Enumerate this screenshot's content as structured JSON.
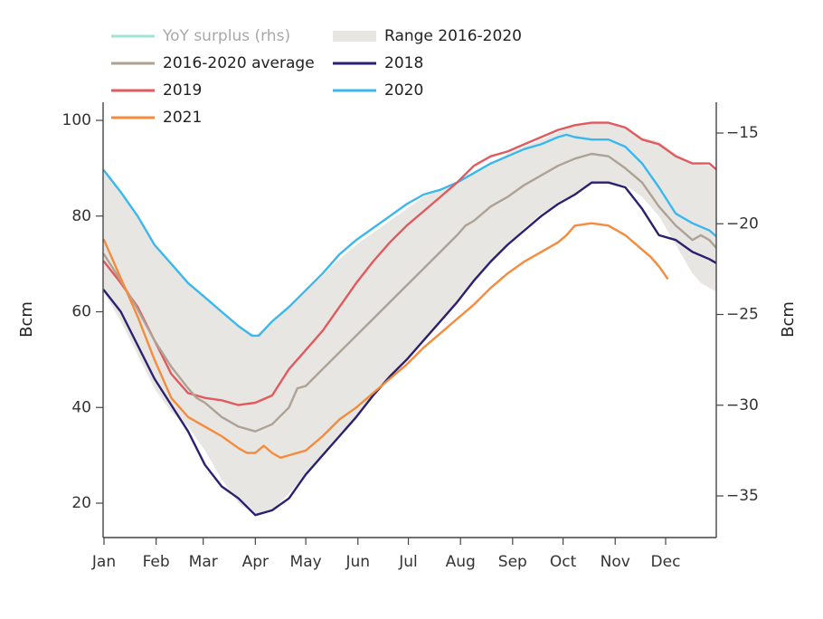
{
  "chart_data": {
    "type": "line",
    "title": "",
    "xlabel": "",
    "ylabel": "Bcm",
    "ylabel_right": "Bcm",
    "x_unit": "day_of_year",
    "xlim": [
      0,
      365
    ],
    "ylim": [
      13,
      104
    ],
    "ylim_right": [
      -37.2,
      -13.6
    ],
    "y_ticks": [
      20,
      40,
      60,
      80,
      100
    ],
    "y_ticks_right": [
      -35,
      -30,
      -25,
      -20,
      -15
    ],
    "y_ticks_right_labels": [
      "−35",
      "−30",
      "−25",
      "−20",
      "−15"
    ],
    "x_ticks": [
      {
        "label": "Jan",
        "day": 0
      },
      {
        "label": "Feb",
        "day": 31
      },
      {
        "label": "Mar",
        "day": 59
      },
      {
        "label": "Apr",
        "day": 90
      },
      {
        "label": "May",
        "day": 120
      },
      {
        "label": "Jun",
        "day": 151
      },
      {
        "label": "Jul",
        "day": 181
      },
      {
        "label": "Aug",
        "day": 212
      },
      {
        "label": "Sep",
        "day": 243
      },
      {
        "label": "Oct",
        "day": 273
      },
      {
        "label": "Nov",
        "day": 304
      },
      {
        "label": "Dec",
        "day": 334
      }
    ],
    "grid": false,
    "legend_position": "top-left",
    "legend": [
      {
        "name": "YoY surplus (rhs)",
        "color": "#9fe3d9",
        "kind": "line",
        "muted": true
      },
      {
        "name": "Range 2016-2020",
        "color": "#e8e6e3",
        "kind": "area",
        "muted": false
      },
      {
        "name": "2016-2020 average",
        "color": "#ada293",
        "kind": "line",
        "muted": false
      },
      {
        "name": "2018",
        "color": "#2b2170",
        "kind": "line",
        "muted": false
      },
      {
        "name": "2019",
        "color": "#e05a5e",
        "kind": "line",
        "muted": false
      },
      {
        "name": "2020",
        "color": "#3ab8ee",
        "kind": "line",
        "muted": false
      },
      {
        "name": "2021",
        "color": "#f58b3c",
        "kind": "line",
        "muted": false
      }
    ],
    "range": {
      "name": "Range 2016-2020",
      "color": "#e8e6e3",
      "x": [
        0,
        10,
        20,
        30,
        40,
        50,
        60,
        70,
        80,
        90,
        100,
        110,
        120,
        130,
        140,
        150,
        160,
        170,
        180,
        190,
        200,
        210,
        220,
        230,
        240,
        250,
        260,
        270,
        280,
        290,
        300,
        310,
        320,
        330,
        340,
        350,
        355,
        360,
        365
      ],
      "upper": [
        89,
        85,
        80,
        74,
        70,
        66,
        63,
        60,
        57,
        55,
        58,
        61,
        64.5,
        67.5,
        71,
        74,
        76.5,
        79,
        81.5,
        84,
        85.5,
        87,
        89,
        91,
        93,
        94.5,
        96,
        97.5,
        99,
        99.5,
        99.5,
        98.5,
        96.5,
        95.5,
        93,
        91,
        90.8,
        90.5,
        89.5
      ],
      "lower": [
        64,
        58,
        51,
        44,
        39,
        36,
        31,
        25,
        20,
        17.5,
        18.5,
        22,
        26,
        30,
        34,
        38,
        42,
        46,
        50,
        54,
        58,
        62,
        66,
        70,
        74,
        77.5,
        80.5,
        82.5,
        84.5,
        86.5,
        87,
        86.5,
        84,
        80,
        74,
        68,
        66,
        65,
        64
      ]
    },
    "series": [
      {
        "name": "2020",
        "color": "#3ab8ee",
        "axis": "left",
        "x": [
          0,
          10,
          20,
          30,
          40,
          50,
          60,
          70,
          80,
          88,
          92,
          100,
          110,
          120,
          130,
          140,
          150,
          160,
          170,
          180,
          190,
          200,
          210,
          220,
          230,
          240,
          250,
          260,
          270,
          275,
          280,
          290,
          300,
          310,
          320,
          330,
          340,
          350,
          360,
          365
        ],
        "y": [
          89.5,
          85,
          80,
          74,
          70,
          66,
          63,
          60,
          57,
          55,
          55,
          58,
          61,
          64.5,
          68,
          72,
          75,
          77.5,
          80,
          82.5,
          84.5,
          85.5,
          87,
          89,
          91,
          92.5,
          94,
          95,
          96.5,
          97,
          96.5,
          96,
          96,
          94.5,
          91,
          86,
          80.5,
          78.5,
          77,
          75.5
        ]
      },
      {
        "name": "2019",
        "color": "#e05a5e",
        "axis": "left",
        "x": [
          0,
          10,
          20,
          30,
          40,
          50,
          60,
          70,
          80,
          90,
          100,
          110,
          120,
          130,
          140,
          150,
          160,
          170,
          180,
          190,
          200,
          210,
          220,
          230,
          240,
          250,
          260,
          270,
          280,
          290,
          300,
          310,
          320,
          330,
          340,
          350,
          360,
          365
        ],
        "y": [
          70.5,
          66,
          61,
          54,
          47,
          43,
          42,
          41.5,
          40.5,
          41,
          42.5,
          48,
          52,
          56,
          61,
          66,
          70.5,
          74.5,
          78,
          81,
          84,
          87,
          90.5,
          92.5,
          93.5,
          95,
          96.5,
          98,
          99,
          99.5,
          99.5,
          98.5,
          96,
          95,
          92.5,
          91,
          91,
          89.5
        ]
      },
      {
        "name": "2016-2020 average",
        "color": "#ada293",
        "axis": "left",
        "x": [
          0,
          10,
          20,
          30,
          40,
          50,
          55,
          60,
          70,
          80,
          90,
          100,
          110,
          115,
          120,
          130,
          140,
          150,
          160,
          170,
          180,
          190,
          200,
          210,
          215,
          220,
          230,
          240,
          250,
          260,
          270,
          280,
          290,
          300,
          310,
          320,
          330,
          340,
          350,
          355,
          360,
          365
        ],
        "y": [
          72,
          66.5,
          60.5,
          54,
          48.5,
          44,
          42,
          41,
          38,
          36,
          35,
          36.5,
          40,
          44,
          44.5,
          48,
          51.5,
          55,
          58.5,
          62,
          65.5,
          69,
          72.5,
          76,
          78,
          79,
          82,
          84,
          86.5,
          88.5,
          90.5,
          92,
          93,
          92.5,
          90,
          87,
          82,
          78,
          75,
          76,
          75,
          73
        ]
      },
      {
        "name": "2018",
        "color": "#2b2170",
        "axis": "left",
        "x": [
          0,
          10,
          20,
          30,
          40,
          50,
          60,
          70,
          80,
          90,
          100,
          110,
          120,
          130,
          140,
          150,
          160,
          170,
          180,
          190,
          200,
          210,
          220,
          230,
          240,
          250,
          260,
          270,
          280,
          290,
          300,
          310,
          320,
          330,
          340,
          350,
          360,
          365
        ],
        "y": [
          64.5,
          60,
          53,
          46,
          40.5,
          35,
          28,
          23.5,
          21,
          17.5,
          18.5,
          21,
          26,
          30,
          34,
          38,
          42.5,
          46.5,
          50,
          54,
          58,
          62,
          66.5,
          70.5,
          74,
          77,
          80,
          82.5,
          84.5,
          87,
          87,
          86,
          81.5,
          76,
          75,
          72.5,
          71,
          70
        ]
      },
      {
        "name": "2021",
        "color": "#f58b3c",
        "axis": "left",
        "x": [
          0,
          10,
          20,
          30,
          40,
          50,
          60,
          70,
          80,
          85,
          90,
          95,
          100,
          105,
          110,
          120,
          130,
          140,
          150,
          160,
          170,
          180,
          190,
          200,
          210,
          220,
          230,
          240,
          250,
          260,
          270,
          275,
          280,
          290,
          300,
          310,
          320,
          325,
          330,
          335
        ],
        "y": [
          75,
          67,
          59,
          50,
          42,
          38,
          36,
          34,
          31.5,
          30.5,
          30.5,
          32,
          30.5,
          29.5,
          30,
          31,
          34,
          37.5,
          40,
          43,
          46,
          49,
          52.5,
          55.5,
          58.5,
          61.5,
          65,
          68,
          70.5,
          72.5,
          74.5,
          76,
          78,
          78.5,
          78,
          76,
          73,
          71.5,
          69.5,
          67
        ]
      }
    ]
  }
}
